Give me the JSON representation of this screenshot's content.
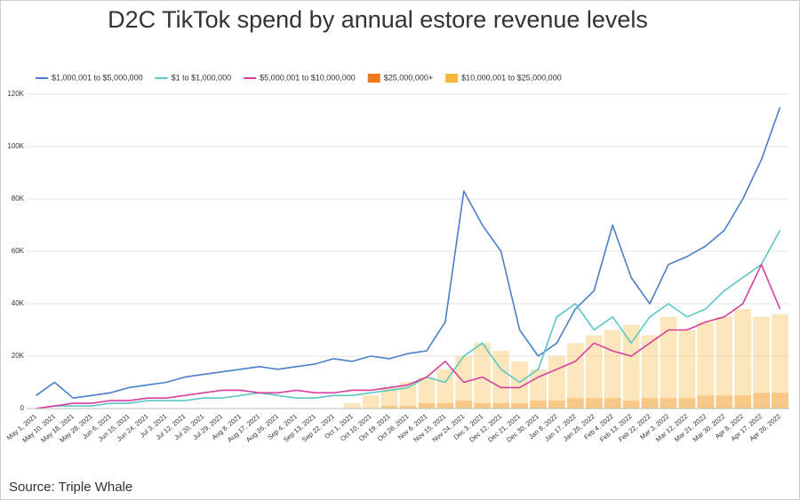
{
  "chart_data": {
    "type": "line",
    "title": "D2C TikTok spend by annual estore revenue levels",
    "source": "Source: Triple Whale",
    "categories": [
      "May 1, 2021",
      "May 10, 2021",
      "May 18, 2021",
      "May 28, 2021",
      "Jun 6, 2021",
      "Jun 15, 2021",
      "Jun 24, 2021",
      "Jul 3, 2021",
      "Jul 12, 2021",
      "Jul 20, 2021",
      "Jul 29, 2021",
      "Aug 8, 2021",
      "Aug 17, 2021",
      "Aug 26, 2021",
      "Sep 4, 2021",
      "Sep 13, 2021",
      "Sep 22, 2021",
      "Oct 1, 2021",
      "Oct 10, 2021",
      "Oct 19, 2021",
      "Oct 28, 2021",
      "Nov 6, 2021",
      "Nov 15, 2021",
      "Nov 24, 2021",
      "Dec 3, 2021",
      "Dec 12, 2021",
      "Dec 21, 2021",
      "Dec 30, 2021",
      "Jan 8, 2022",
      "Jan 17, 2022",
      "Jan 26, 2022",
      "Feb 4, 2022",
      "Feb 13, 2022",
      "Feb 22, 2022",
      "Mar 3, 2022",
      "Mar 12, 2022",
      "Mar 21, 2022",
      "Mar 30, 2022",
      "Apr 8, 2022",
      "Apr 17, 2022",
      "Apr 26, 2022"
    ],
    "series": [
      {
        "name": "$1,000,001 to $5,000,000",
        "color": "#4a7fc9",
        "type": "line",
        "values": [
          5000,
          10000,
          4000,
          5000,
          6000,
          8000,
          9000,
          10000,
          12000,
          13000,
          14000,
          15000,
          16000,
          15000,
          16000,
          17000,
          19000,
          18000,
          20000,
          19000,
          21000,
          22000,
          33000,
          83000,
          70000,
          60000,
          30000,
          20000,
          25000,
          38000,
          45000,
          70000,
          50000,
          40000,
          55000,
          58000,
          62000,
          68000,
          80000,
          95000,
          115000
        ]
      },
      {
        "name": "$1 to $1,000,000",
        "color": "#5cc7c4",
        "type": "line",
        "values": [
          0,
          1000,
          1000,
          1000,
          2000,
          2000,
          3000,
          3000,
          3000,
          4000,
          4000,
          5000,
          6000,
          5000,
          4000,
          4000,
          5000,
          5000,
          6000,
          7000,
          8000,
          12000,
          10000,
          20000,
          25000,
          15000,
          10000,
          15000,
          35000,
          40000,
          30000,
          35000,
          25000,
          35000,
          40000,
          35000,
          38000,
          45000,
          50000,
          55000,
          68000
        ]
      },
      {
        "name": "$5,000,001 to $10,000,000",
        "color": "#d63fa0",
        "type": "line",
        "values": [
          0,
          1000,
          2000,
          2000,
          3000,
          3000,
          4000,
          4000,
          5000,
          6000,
          7000,
          7000,
          6000,
          6000,
          7000,
          6000,
          6000,
          7000,
          7000,
          8000,
          9000,
          12000,
          18000,
          10000,
          12000,
          8000,
          8000,
          12000,
          15000,
          18000,
          25000,
          22000,
          20000,
          25000,
          30000,
          30000,
          33000,
          35000,
          40000,
          55000,
          38000
        ]
      },
      {
        "name": "$25,000,000+",
        "color": "#f07a1a",
        "type": "bar",
        "values": [
          0,
          0,
          0,
          0,
          0,
          0,
          0,
          0,
          0,
          0,
          0,
          0,
          0,
          0,
          0,
          0,
          0,
          0,
          0,
          1000,
          1000,
          2000,
          2000,
          3000,
          2000,
          2000,
          2000,
          3000,
          3000,
          4000,
          4000,
          4000,
          3000,
          4000,
          4000,
          4000,
          5000,
          5000,
          5000,
          6000,
          6000
        ]
      },
      {
        "name": "$10,000,001 to $25,000,000",
        "color": "#f6b73c",
        "type": "bar",
        "values": [
          0,
          0,
          0,
          0,
          0,
          0,
          0,
          0,
          0,
          0,
          0,
          0,
          0,
          0,
          0,
          0,
          0,
          2000,
          5000,
          8000,
          10000,
          12000,
          15000,
          20000,
          25000,
          22000,
          18000,
          15000,
          20000,
          25000,
          28000,
          30000,
          32000,
          28000,
          35000,
          30000,
          33000,
          35000,
          38000,
          35000,
          36000
        ]
      }
    ],
    "ylim": [
      0,
      120000
    ],
    "yticks": [
      0,
      {
        "value": 20000,
        "label": "20K"
      },
      {
        "value": 40000,
        "label": "40K"
      },
      {
        "value": 60000,
        "label": "60K"
      },
      {
        "value": 80000,
        "label": "80K"
      },
      {
        "value": 100000,
        "label": "100K"
      },
      {
        "value": 120000,
        "label": "120K"
      }
    ],
    "grid": true
  }
}
